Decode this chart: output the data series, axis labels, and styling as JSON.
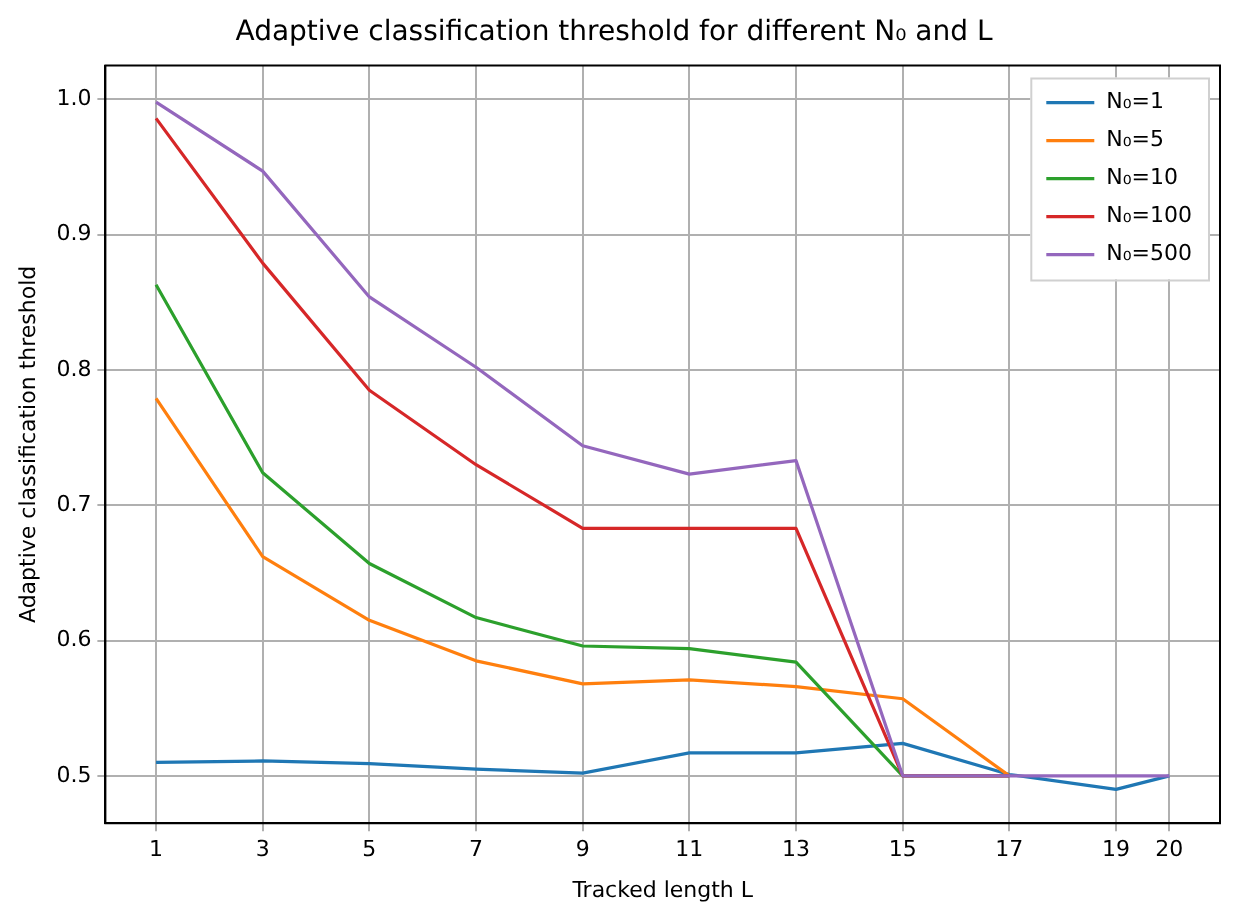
{
  "chart_data": {
    "type": "line",
    "title": "Adaptive classification threshold for different N₀ and L",
    "xlabel": "Tracked length L",
    "ylabel": "Adaptive classification threshold",
    "x": [
      1,
      3,
      5,
      7,
      9,
      11,
      13,
      15,
      17,
      19,
      20
    ],
    "series": [
      {
        "name": "N₀=1",
        "color": "#1f77b4",
        "values": [
          0.51,
          0.511,
          0.509,
          0.505,
          0.502,
          0.517,
          0.517,
          0.524,
          0.501,
          0.49,
          0.5
        ]
      },
      {
        "name": "N₀=5",
        "color": "#ff7f0e",
        "values": [
          0.779,
          0.662,
          0.615,
          0.585,
          0.568,
          0.571,
          0.566,
          0.557,
          0.5,
          null,
          null
        ]
      },
      {
        "name": "N₀=10",
        "color": "#2ca02c",
        "values": [
          0.863,
          0.724,
          0.657,
          0.617,
          0.596,
          0.594,
          0.584,
          0.5,
          0.5,
          null,
          null
        ]
      },
      {
        "name": "N₀=100",
        "color": "#d62728",
        "values": [
          0.986,
          0.879,
          0.785,
          0.73,
          0.683,
          0.683,
          0.683,
          0.5,
          0.5,
          null,
          null
        ]
      },
      {
        "name": "N₀=500",
        "color": "#9467bd",
        "values": [
          0.998,
          0.947,
          0.854,
          0.802,
          0.744,
          0.723,
          0.733,
          0.5,
          0.5,
          0.5,
          0.5
        ]
      }
    ],
    "xlim": [
      0.05,
      20.95
    ],
    "xticks": [
      1,
      3,
      5,
      7,
      9,
      11,
      13,
      15,
      17,
      19,
      20
    ],
    "ylim": [
      0.465,
      1.025
    ],
    "yticks": [
      0.5,
      0.6,
      0.7,
      0.8,
      0.9,
      {
        "value": 1,
        "label": "1.0"
      }
    ],
    "grid": true,
    "legend": "top right",
    "marker": "none",
    "line_style": "solid"
  }
}
